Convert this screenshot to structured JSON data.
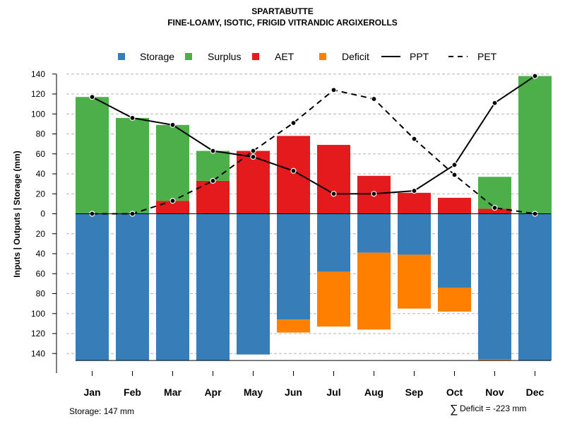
{
  "chart_data": {
    "type": "bar",
    "title": "SPARTABUTTE",
    "subtitle": "FINE-LOAMY, ISOTIC, FRIGID VITRANDIC ARGIXEROLLS",
    "ylabel": "Inputs | Outputs | Storage    (mm)",
    "ylim": [
      -147,
      140
    ],
    "y_ticks": [
      140,
      120,
      100,
      80,
      60,
      40,
      20,
      0,
      -20,
      -40,
      -60,
      -80,
      -100,
      -120,
      -140
    ],
    "y_tick_labels": [
      "140",
      "120",
      "100",
      "80",
      "60",
      "40",
      "20",
      "0",
      "20",
      "40",
      "60",
      "80",
      "100",
      "120",
      "140"
    ],
    "categories": [
      "Jan",
      "Feb",
      "Mar",
      "Apr",
      "May",
      "Jun",
      "Jul",
      "Aug",
      "Sep",
      "Oct",
      "Nov",
      "Dec"
    ],
    "series": [
      {
        "name": "Storage",
        "color": "#377EB8",
        "values": [
          -147,
          -147,
          -147,
          -147,
          -141,
          -106,
          -58,
          -39,
          -41,
          -74,
          -146,
          -147
        ]
      },
      {
        "name": "Surplus",
        "color": "#4DAF4A",
        "values": [
          117,
          96,
          76,
          30,
          0,
          0,
          0,
          0,
          0,
          0,
          32,
          138
        ]
      },
      {
        "name": "AET",
        "color": "#E41A1C",
        "values": [
          0,
          0,
          13,
          33,
          63,
          78,
          69,
          38,
          21,
          16,
          5,
          0
        ]
      },
      {
        "name": "Deficit",
        "color": "#FF7F00",
        "values": [
          0,
          0,
          0,
          0,
          0,
          13,
          55,
          77,
          54,
          24,
          1,
          0
        ]
      },
      {
        "name": "PPT",
        "color": "#000000",
        "style": "solid",
        "values": [
          117,
          96,
          89,
          63,
          57,
          43,
          20,
          20,
          23,
          49,
          111,
          138
        ]
      },
      {
        "name": "PET",
        "color": "#000000",
        "style": "dashed",
        "values": [
          0,
          0,
          13,
          33,
          63,
          91,
          124,
          115,
          75,
          39,
          6,
          0
        ]
      }
    ],
    "legend": [
      "Storage",
      "Surplus",
      "AET",
      "Deficit",
      "PPT",
      "PET"
    ],
    "legend_position": "top",
    "grid": true
  },
  "footer": {
    "storage_label": "Storage: 147 mm",
    "deficit_symbol": "∑",
    "deficit_label": "Deficit = -223 mm"
  }
}
